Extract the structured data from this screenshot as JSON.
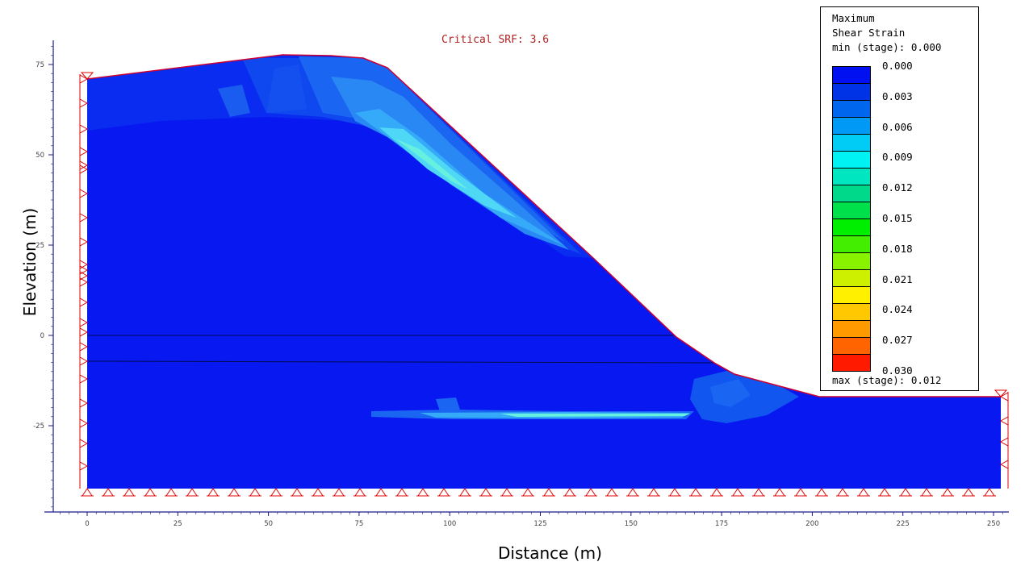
{
  "header": {
    "srf_text": "Critical SRF: 3.6"
  },
  "axes": {
    "xlabel": "Distance (m)",
    "ylabel": "Elevation (m)",
    "x_ticks": [
      "0",
      "25",
      "50",
      "75",
      "100",
      "125",
      "150",
      "175",
      "200",
      "225",
      "250"
    ],
    "y_ticks": [
      "75",
      "50",
      "25",
      "0",
      "-25"
    ]
  },
  "legend": {
    "title_line1": "Maximum",
    "title_line2": "Shear Strain",
    "min_text": "min (stage): 0.000",
    "max_text": "max (stage): 0.012",
    "labels": [
      "0.000",
      "0.003",
      "0.006",
      "0.009",
      "0.012",
      "0.015",
      "0.018",
      "0.021",
      "0.024",
      "0.027",
      "0.030"
    ],
    "colors": [
      "#0010f0",
      "#0033e6",
      "#0066ee",
      "#0099f5",
      "#00ccf5",
      "#00f2f2",
      "#00e6c0",
      "#00d98a",
      "#00e04a",
      "#00ee00",
      "#44ee00",
      "#88f200",
      "#ccf000",
      "#fff000",
      "#ffc800",
      "#ff9a00",
      "#ff6400",
      "#ff1a00"
    ]
  },
  "model": {
    "background_color": "#0718f0",
    "boundary_color": "#cc0033",
    "support_color": "#e00000"
  }
}
